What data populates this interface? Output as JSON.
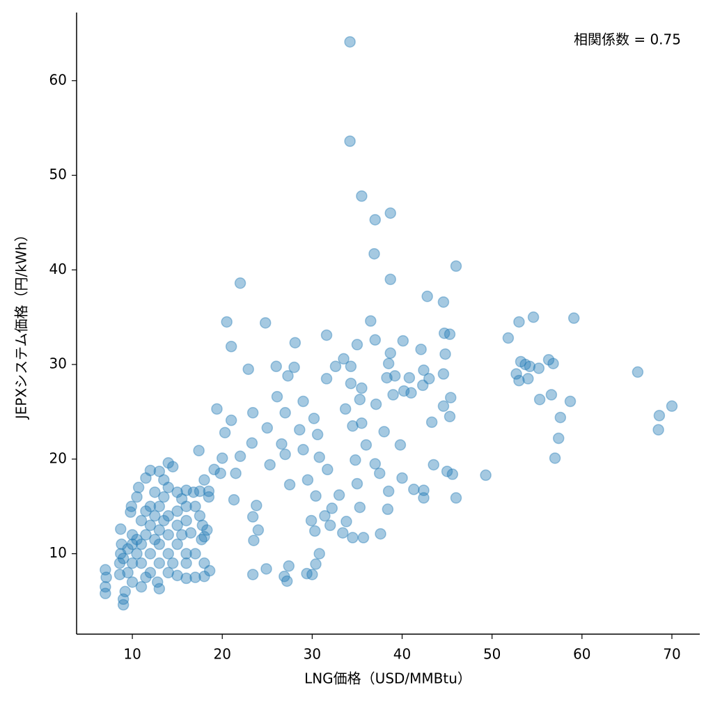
{
  "chart_data": {
    "type": "scatter",
    "annotation": "相関係数 = 0.75",
    "x_label": "LNG価格（USD/MMBtu）",
    "y_label": "JEPXシステム価格（円/kWh）",
    "color": "#1f77b4",
    "xlim": [
      3.8,
      73.1
    ],
    "ylim": [
      1.5,
      67.2
    ],
    "xticks": [
      10,
      20,
      30,
      40,
      50,
      60,
      70
    ],
    "yticks": [
      10,
      20,
      30,
      40,
      50,
      60
    ],
    "x": [
      34.2,
      34.2,
      35.5,
      38.7,
      37,
      36.9,
      46,
      38.7,
      22,
      42.8,
      44.6,
      54.6,
      59.1,
      20.5,
      24.8,
      36.5,
      53,
      44.7,
      45.3,
      31.6,
      51.8,
      37,
      40.1,
      28.1,
      35,
      21,
      42.1,
      38.7,
      44.8,
      56.3,
      33.5,
      53.2,
      56.8,
      38.5,
      53.7,
      32.6,
      34.3,
      26,
      28,
      22.9,
      55.2,
      54.2,
      42.4,
      66.2,
      44.6,
      52.7,
      27.3,
      31.6,
      40.8,
      43,
      54,
      53,
      38.3,
      39.2,
      34.3,
      42.3,
      35.5,
      41,
      40.2,
      39,
      56.6,
      45.4,
      26.1,
      29,
      35.3,
      55.3,
      58.7,
      70,
      44.6,
      37.1,
      33.7,
      19.4,
      27,
      23.4,
      68.6,
      45.3,
      57.6,
      21,
      30.2,
      43.3,
      34.5,
      35.5,
      25,
      28.6,
      68.5,
      38,
      30.6,
      20.3,
      57.4,
      23.3,
      26.6,
      36,
      39.8,
      29,
      27,
      22,
      57,
      30.8,
      34.8,
      43.5,
      25.3,
      37,
      31.7,
      21.5,
      45,
      49.3,
      45.6,
      37.5,
      40,
      29.5,
      35,
      27.5,
      41.3,
      42.4,
      30.4,
      33,
      38.5,
      46,
      42.4,
      21.3,
      23.8,
      32.2,
      35.3,
      38.4,
      31.4,
      23.4,
      33.8,
      29.9,
      32,
      30.3,
      24,
      33.4,
      37.6,
      34.5,
      35.7,
      23.5,
      30.8,
      30.4,
      24.9,
      27.4,
      26.9,
      27.2,
      29.4,
      30,
      23.4,
      19.1,
      18,
      17.4,
      20,
      19.8,
      18.5,
      7,
      7,
      7.1,
      7,
      9,
      9,
      9.2,
      8.6,
      8.6,
      8.7,
      8.8,
      8.7,
      9.8,
      9.9,
      10.5,
      10.7,
      11.5,
      12,
      13,
      14,
      14.5,
      15,
      16,
      17,
      17.5,
      16.5,
      17.7,
      18,
      18.6,
      18,
      17,
      16,
      15,
      13,
      11,
      10,
      9.5,
      10,
      10.5,
      11,
      11.5,
      12,
      12.5,
      13,
      13.5,
      14,
      12,
      13,
      14,
      15,
      11,
      12,
      13,
      14,
      15,
      16,
      10,
      11,
      12,
      13,
      14,
      15,
      16,
      14,
      16,
      17,
      18,
      17.8,
      10.5,
      12.5,
      13.5,
      11.5,
      12.5,
      13.5,
      15.5,
      9.5,
      10,
      9,
      11.5,
      12.8,
      14.5,
      15.5,
      16.8,
      18.5,
      17.5,
      16,
      18.3
    ],
    "values": [
      64.1,
      53.6,
      47.8,
      46,
      45.3,
      41.7,
      40.4,
      39,
      38.6,
      37.2,
      36.6,
      35,
      34.9,
      34.5,
      34.4,
      34.6,
      34.5,
      33.3,
      33.2,
      33.1,
      32.8,
      32.6,
      32.5,
      32.3,
      32.1,
      31.9,
      31.6,
      31.2,
      31.1,
      30.5,
      30.6,
      30.3,
      30.1,
      30.1,
      30,
      29.8,
      29.8,
      29.8,
      29.7,
      29.5,
      29.6,
      29.8,
      29.4,
      29.2,
      29,
      29,
      28.8,
      28.5,
      28.6,
      28.5,
      28.5,
      28.3,
      28.6,
      28.8,
      28,
      27.8,
      27.5,
      27,
      27.2,
      26.8,
      26.8,
      26.5,
      26.6,
      26.1,
      26.3,
      26.3,
      26.1,
      25.6,
      25.6,
      25.8,
      25.3,
      25.3,
      24.9,
      24.9,
      24.6,
      24.5,
      24.4,
      24.1,
      24.3,
      23.9,
      23.5,
      23.8,
      23.3,
      23.1,
      23.1,
      22.9,
      22.6,
      22.8,
      22.2,
      21.7,
      21.6,
      21.5,
      21.5,
      21,
      20.5,
      20.3,
      20.1,
      20.2,
      19.9,
      19.4,
      19.4,
      19.5,
      18.9,
      18.5,
      18.7,
      18.3,
      18.4,
      18.5,
      18,
      17.8,
      17.4,
      17.3,
      16.8,
      16.7,
      16.1,
      16.2,
      16.6,
      15.9,
      15.9,
      15.7,
      15.1,
      14.8,
      14.9,
      14.7,
      14,
      13.9,
      13.4,
      13.5,
      13,
      12.4,
      12.5,
      12.2,
      12.1,
      11.7,
      11.7,
      11.4,
      10,
      8.9,
      8.4,
      8.7,
      7.6,
      7.1,
      7.9,
      7.8,
      7.8,
      18.9,
      17.8,
      20.9,
      20.1,
      18.5,
      16,
      5.8,
      6.5,
      7.5,
      8.3,
      4.6,
      5.2,
      6,
      7.8,
      9,
      10,
      11,
      12.6,
      14.4,
      15,
      16,
      17,
      18,
      18.8,
      18.7,
      19.6,
      19.2,
      16.5,
      16.7,
      15,
      14,
      12.2,
      11.5,
      9,
      8.2,
      7.6,
      7.5,
      7.4,
      7.7,
      6.3,
      6.5,
      7,
      8,
      9,
      10,
      11,
      12,
      13,
      14,
      15,
      16,
      17,
      10,
      11,
      12,
      13,
      9,
      8,
      9,
      10,
      11,
      10,
      12,
      13.5,
      15,
      12.5,
      14,
      14.5,
      13.5,
      8,
      9,
      10,
      11.8,
      13,
      11.5,
      11.5,
      13.5,
      14.5,
      16.5,
      17.8,
      15.8,
      10.5,
      11,
      9.5,
      7.5,
      7,
      9,
      12,
      16.5,
      16.6,
      16.6,
      15,
      12.5
    ]
  }
}
